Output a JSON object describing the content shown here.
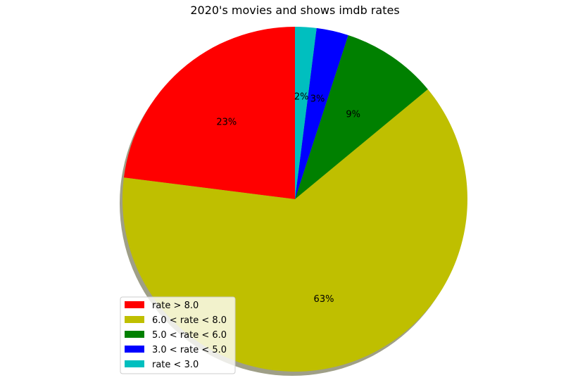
{
  "chart_data": {
    "type": "pie",
    "title": "2020's movies and shows imdb rates",
    "slices": [
      {
        "label": "rate > 8.0",
        "value": 23,
        "pct_label": "23%",
        "color": "#ff0000"
      },
      {
        "label": "6.0 < rate < 8.0",
        "value": 63,
        "pct_label": "63%",
        "color": "#bfbf00"
      },
      {
        "label": "5.0 < rate < 6.0",
        "value": 9,
        "pct_label": "9%",
        "color": "#008000"
      },
      {
        "label": "3.0 < rate < 5.0",
        "value": 3,
        "pct_label": "3%",
        "color": "#0000ff"
      },
      {
        "label": "rate < 3.0",
        "value": 2,
        "pct_label": "2%",
        "color": "#00bfbf"
      }
    ],
    "shadow": true,
    "legend": "lower-left"
  }
}
